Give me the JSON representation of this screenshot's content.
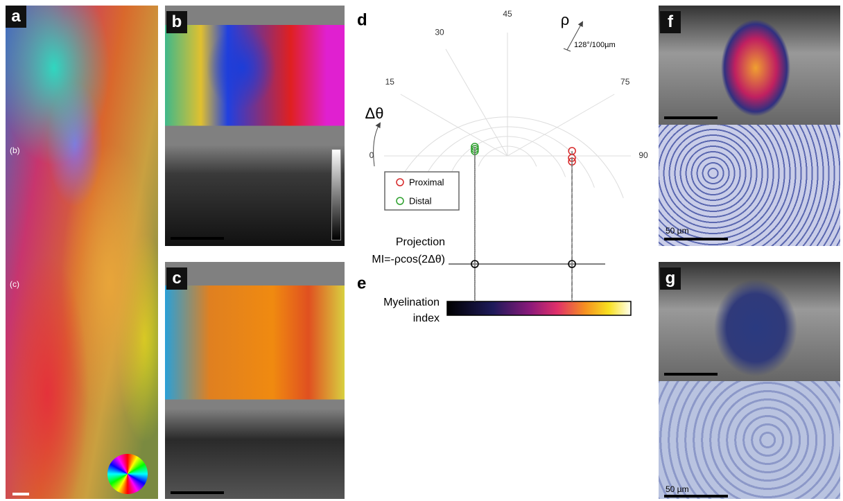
{
  "panels": {
    "a": {
      "label": "a",
      "markers": [
        "(b)",
        "(c)"
      ]
    },
    "b": {
      "label": "b"
    },
    "c": {
      "label": "c"
    },
    "d": {
      "label": "d",
      "angle_title": "Δθ",
      "radius_title": "ρ",
      "scale": "128°/100µm",
      "angle_ticks": [
        0,
        15,
        30,
        45,
        75,
        90
      ],
      "rlim": [
        0,
        4
      ],
      "rticks": [
        1,
        2,
        3,
        4
      ],
      "series": [
        {
          "name": "Proximal",
          "color": "#d62728",
          "dtheta": [
            87.8,
            90.9,
            92.5
          ],
          "rho": [
            2.1,
            2.09,
            2.1
          ]
        },
        {
          "name": "Distal",
          "color": "#2ca02c",
          "dtheta": [
            7.8,
            6,
            4.2
          ],
          "rho": [
            1.1,
            1.08,
            1.07
          ]
        }
      ],
      "projection_label": "Projection",
      "formula": "MI=-ρcos(2Δθ)"
    },
    "e": {
      "label": "e",
      "colorbar_label": [
        "Myelination",
        "index"
      ]
    },
    "f": {
      "label": "f",
      "scale_label": "50 µm"
    },
    "g": {
      "label": "g",
      "scale_label": "50 µm"
    }
  }
}
